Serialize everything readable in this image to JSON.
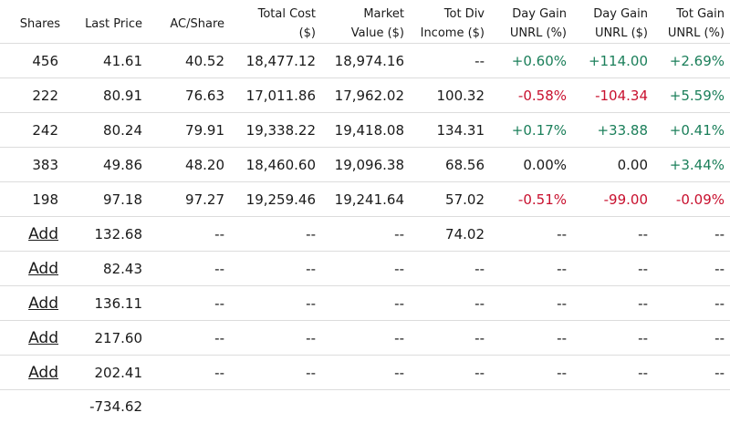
{
  "columns": [
    {
      "key": "shares",
      "lines": [
        "Shares"
      ]
    },
    {
      "key": "last_price",
      "lines": [
        "Last Price"
      ]
    },
    {
      "key": "ac_share",
      "lines": [
        "AC/Share"
      ]
    },
    {
      "key": "total_cost",
      "lines": [
        "Total Cost",
        "($)"
      ]
    },
    {
      "key": "market_value",
      "lines": [
        "Market",
        "Value ($)"
      ]
    },
    {
      "key": "tot_div",
      "lines": [
        "Tot Div",
        "Income ($)"
      ]
    },
    {
      "key": "day_gain_pct",
      "lines": [
        "Day Gain",
        "UNRL (%)"
      ]
    },
    {
      "key": "day_gain",
      "lines": [
        "Day Gain",
        "UNRL ($)"
      ]
    },
    {
      "key": "tot_gain_pct",
      "lines": [
        "Tot Gain",
        "UNRL (%)"
      ]
    }
  ],
  "colors": {
    "positive": "#1b7f5a",
    "negative": "#c8102e",
    "neutral": "#1a1a1a"
  },
  "rows": [
    {
      "shares": "456",
      "last_price": "41.61",
      "ac_share": "40.52",
      "total_cost": "18,477.12",
      "market_value": "18,974.16",
      "tot_div": "--",
      "day_gain_pct": "+0.60%",
      "day_gain": "+114.00",
      "tot_gain_pct": "+2.69%",
      "day_trend": "pos",
      "tot_trend": "pos"
    },
    {
      "shares": "222",
      "last_price": "80.91",
      "ac_share": "76.63",
      "total_cost": "17,011.86",
      "market_value": "17,962.02",
      "tot_div": "100.32",
      "day_gain_pct": "-0.58%",
      "day_gain": "-104.34",
      "tot_gain_pct": "+5.59%",
      "day_trend": "neg",
      "tot_trend": "pos"
    },
    {
      "shares": "242",
      "last_price": "80.24",
      "ac_share": "79.91",
      "total_cost": "19,338.22",
      "market_value": "19,418.08",
      "tot_div": "134.31",
      "day_gain_pct": "+0.17%",
      "day_gain": "+33.88",
      "tot_gain_pct": "+0.41%",
      "day_trend": "pos",
      "tot_trend": "pos"
    },
    {
      "shares": "383",
      "last_price": "49.86",
      "ac_share": "48.20",
      "total_cost": "18,460.60",
      "market_value": "19,096.38",
      "tot_div": "68.56",
      "day_gain_pct": "0.00%",
      "day_gain": "0.00",
      "tot_gain_pct": "+3.44%",
      "day_trend": "neu",
      "tot_trend": "pos"
    },
    {
      "shares": "198",
      "last_price": "97.18",
      "ac_share": "97.27",
      "total_cost": "19,259.46",
      "market_value": "19,241.64",
      "tot_div": "57.02",
      "day_gain_pct": "-0.51%",
      "day_gain": "-99.00",
      "tot_gain_pct": "-0.09%",
      "day_trend": "neg",
      "tot_trend": "neg"
    },
    {
      "add_label": "Add",
      "last_price": "132.68",
      "ac_share": "--",
      "total_cost": "--",
      "market_value": "--",
      "tot_div": "74.02",
      "day_gain_pct": "--",
      "day_gain": "--",
      "tot_gain_pct": "--"
    },
    {
      "add_label": "Add",
      "last_price": "82.43",
      "ac_share": "--",
      "total_cost": "--",
      "market_value": "--",
      "tot_div": "--",
      "day_gain_pct": "--",
      "day_gain": "--",
      "tot_gain_pct": "--"
    },
    {
      "add_label": "Add",
      "last_price": "136.11",
      "ac_share": "--",
      "total_cost": "--",
      "market_value": "--",
      "tot_div": "--",
      "day_gain_pct": "--",
      "day_gain": "--",
      "tot_gain_pct": "--"
    },
    {
      "add_label": "Add",
      "last_price": "217.60",
      "ac_share": "--",
      "total_cost": "--",
      "market_value": "--",
      "tot_div": "--",
      "day_gain_pct": "--",
      "day_gain": "--",
      "tot_gain_pct": "--"
    },
    {
      "add_label": "Add",
      "last_price": "202.41",
      "ac_share": "--",
      "total_cost": "--",
      "market_value": "--",
      "tot_div": "--",
      "day_gain_pct": "--",
      "day_gain": "--",
      "tot_gain_pct": "--"
    }
  ],
  "total_row": {
    "last_price": "-734.62"
  }
}
